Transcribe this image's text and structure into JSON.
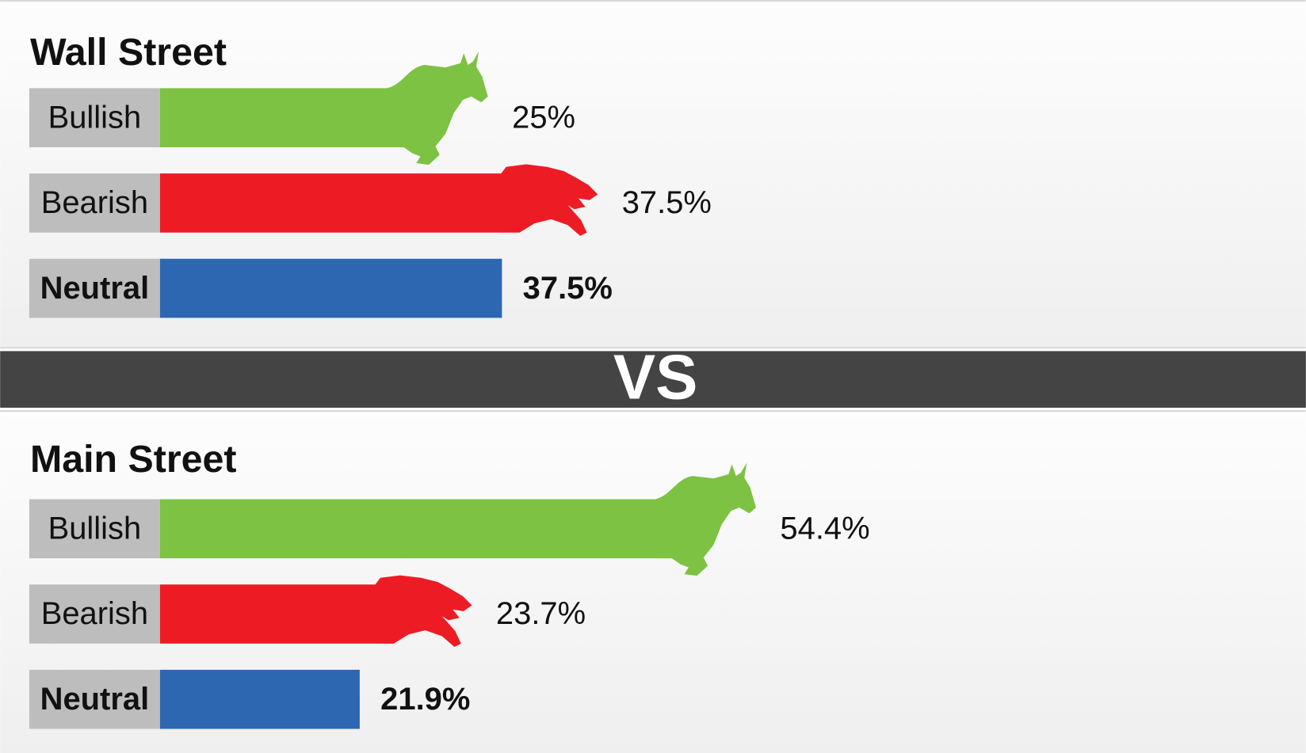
{
  "chart_data": [
    {
      "type": "bar",
      "title": "Wall Street",
      "categories": [
        "Bullish",
        "Bearish",
        "Neutral"
      ],
      "values": [
        25,
        37.5,
        37.5
      ],
      "value_labels": [
        "25%",
        "37.5%",
        "37.5%"
      ],
      "colors": [
        "#7dc242",
        "#ed1c24",
        "#2e67b1"
      ]
    },
    {
      "type": "bar",
      "title": "Main Street",
      "categories": [
        "Bullish",
        "Bearish",
        "Neutral"
      ],
      "values": [
        54.4,
        23.7,
        21.9
      ],
      "value_labels": [
        "54.4%",
        "23.7%",
        "21.9%"
      ],
      "colors": [
        "#7dc242",
        "#ed1c24",
        "#2e67b1"
      ]
    }
  ],
  "separator": "VS"
}
